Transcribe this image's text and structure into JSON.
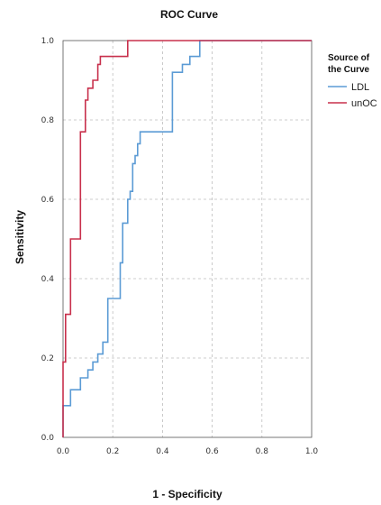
{
  "chart_data": {
    "type": "line",
    "title": "ROC Curve",
    "xlabel": "1 - Specificity",
    "ylabel": "Sensitivity",
    "xlim": [
      0,
      1
    ],
    "ylim": [
      0,
      1
    ],
    "x_ticks": [
      "0.0",
      "0.2",
      "0.4",
      "0.6",
      "0.8",
      "1.0"
    ],
    "y_ticks": [
      "0.0",
      "0.2",
      "0.4",
      "0.6",
      "0.8",
      "1.0"
    ],
    "grid": true,
    "legend": {
      "title_lines": [
        "Source of",
        "the Curve"
      ],
      "placement": "top-right-outside"
    },
    "series": [
      {
        "name": "LDL",
        "color": "#5b9bd5",
        "points": [
          [
            0,
            0
          ],
          [
            0,
            0.08
          ],
          [
            0.03,
            0.08
          ],
          [
            0.03,
            0.12
          ],
          [
            0.07,
            0.12
          ],
          [
            0.07,
            0.15
          ],
          [
            0.1,
            0.15
          ],
          [
            0.1,
            0.17
          ],
          [
            0.12,
            0.17
          ],
          [
            0.12,
            0.19
          ],
          [
            0.14,
            0.19
          ],
          [
            0.14,
            0.21
          ],
          [
            0.16,
            0.21
          ],
          [
            0.16,
            0.24
          ],
          [
            0.18,
            0.24
          ],
          [
            0.18,
            0.35
          ],
          [
            0.23,
            0.35
          ],
          [
            0.23,
            0.44
          ],
          [
            0.24,
            0.44
          ],
          [
            0.24,
            0.54
          ],
          [
            0.26,
            0.54
          ],
          [
            0.26,
            0.6
          ],
          [
            0.27,
            0.6
          ],
          [
            0.27,
            0.62
          ],
          [
            0.28,
            0.62
          ],
          [
            0.28,
            0.69
          ],
          [
            0.29,
            0.69
          ],
          [
            0.29,
            0.71
          ],
          [
            0.3,
            0.71
          ],
          [
            0.3,
            0.74
          ],
          [
            0.31,
            0.74
          ],
          [
            0.31,
            0.77
          ],
          [
            0.44,
            0.77
          ],
          [
            0.44,
            0.92
          ],
          [
            0.48,
            0.92
          ],
          [
            0.48,
            0.94
          ],
          [
            0.51,
            0.94
          ],
          [
            0.51,
            0.96
          ],
          [
            0.55,
            0.96
          ],
          [
            0.55,
            1.0
          ],
          [
            1.0,
            1.0
          ]
        ]
      },
      {
        "name": "unOC",
        "color": "#c8304c",
        "points": [
          [
            0,
            0
          ],
          [
            0,
            0.19
          ],
          [
            0.01,
            0.19
          ],
          [
            0.01,
            0.31
          ],
          [
            0.03,
            0.31
          ],
          [
            0.03,
            0.5
          ],
          [
            0.07,
            0.5
          ],
          [
            0.07,
            0.77
          ],
          [
            0.09,
            0.77
          ],
          [
            0.09,
            0.85
          ],
          [
            0.1,
            0.85
          ],
          [
            0.1,
            0.88
          ],
          [
            0.12,
            0.88
          ],
          [
            0.12,
            0.9
          ],
          [
            0.14,
            0.9
          ],
          [
            0.14,
            0.94
          ],
          [
            0.15,
            0.94
          ],
          [
            0.15,
            0.96
          ],
          [
            0.26,
            0.96
          ],
          [
            0.26,
            1.0
          ],
          [
            1.0,
            1.0
          ]
        ]
      }
    ]
  }
}
